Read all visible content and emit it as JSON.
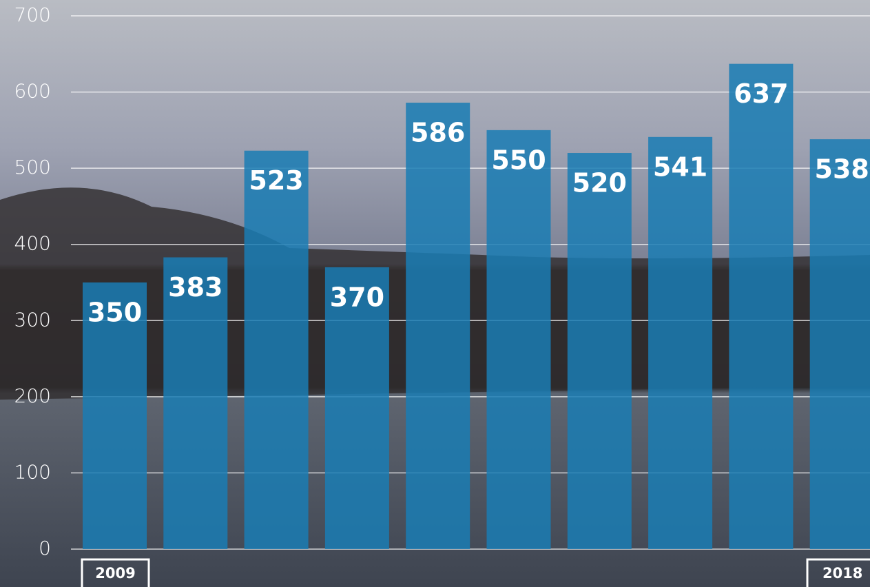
{
  "chart_data": {
    "type": "bar",
    "categories": [
      "2009",
      null,
      null,
      null,
      null,
      null,
      null,
      null,
      null,
      "2018"
    ],
    "values": [
      350,
      383,
      523,
      370,
      586,
      550,
      520,
      541,
      637,
      538
    ],
    "color": "#1a7db4",
    "ylim": [
      0,
      700
    ],
    "yticks": [
      0,
      100,
      200,
      300,
      400,
      500,
      600,
      700
    ],
    "grid": true
  }
}
